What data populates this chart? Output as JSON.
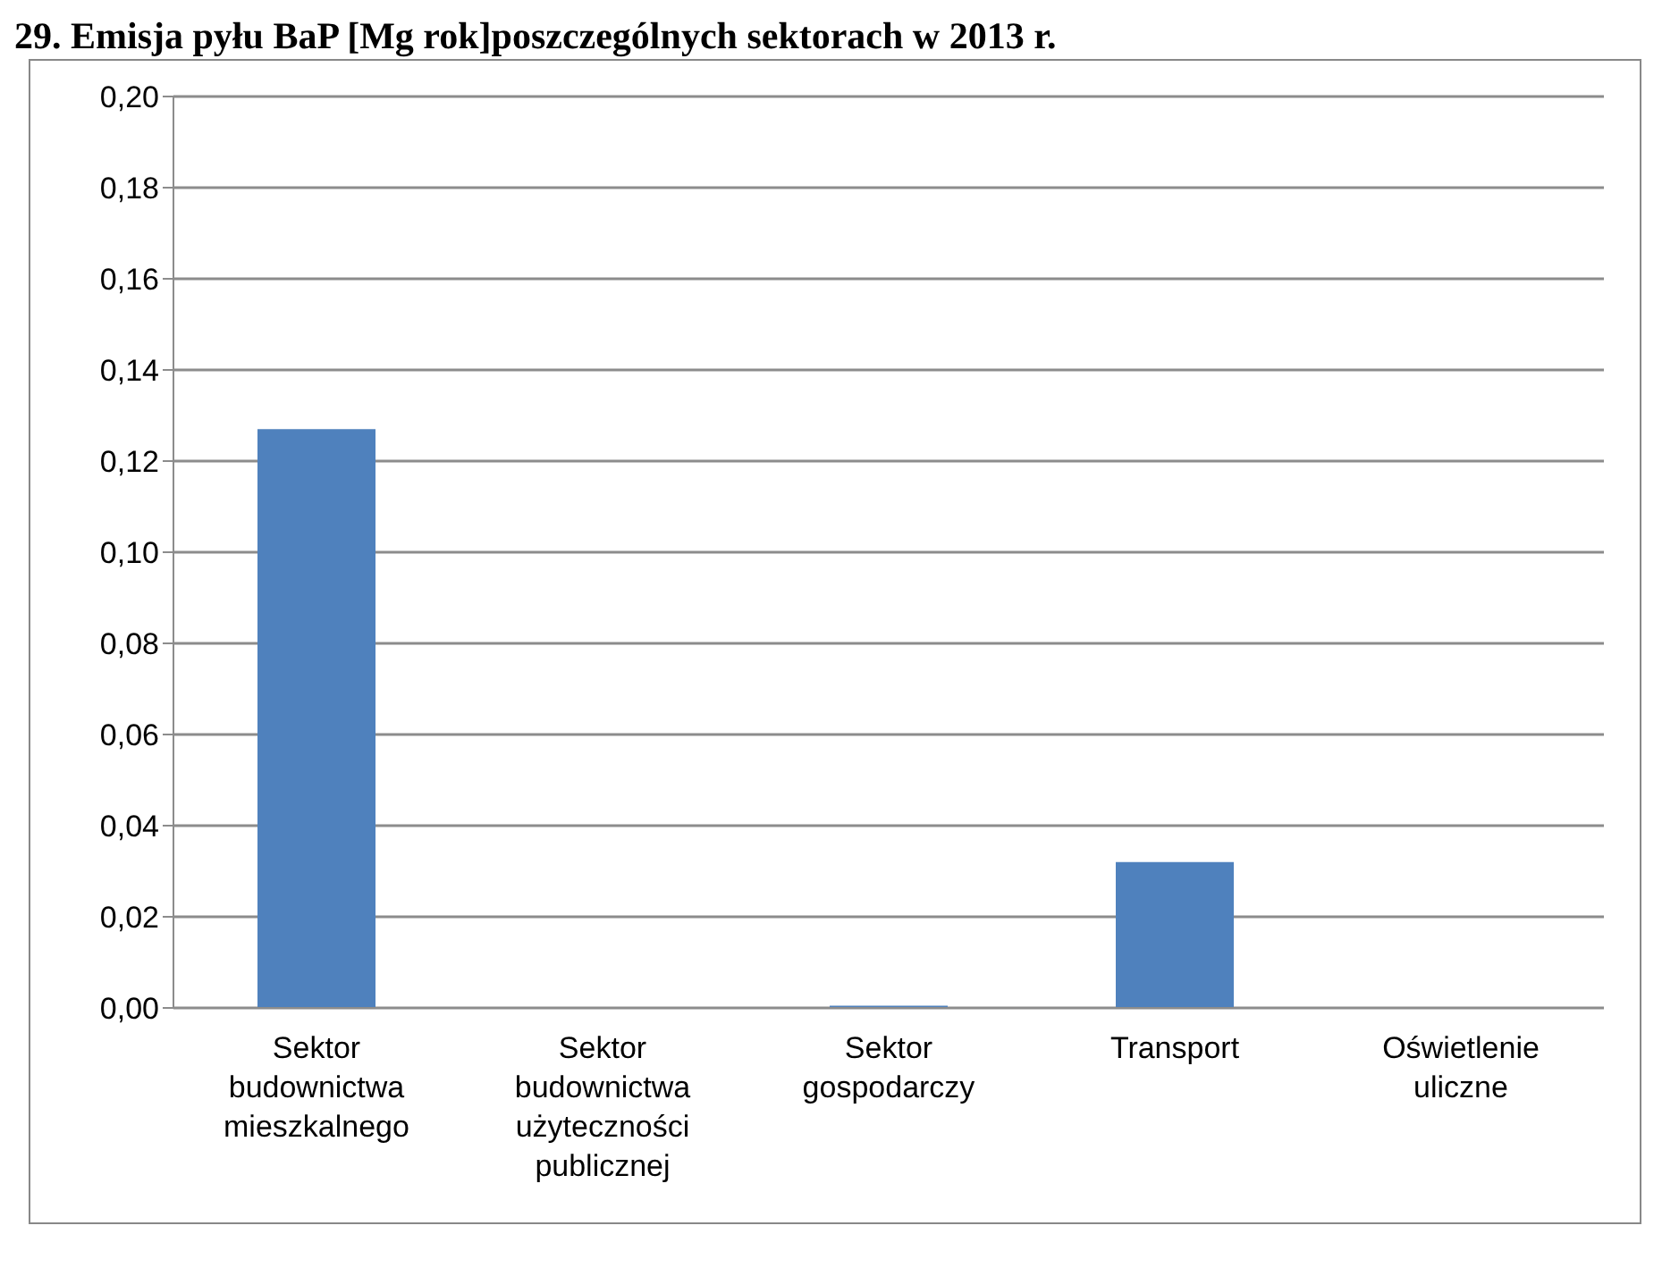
{
  "chart_data": {
    "type": "bar",
    "title": "29. Emisja pyłu BaP [Mg rok]poszczególnych sektorach w 2013 r.",
    "categories": [
      "Sektor budownictwa mieszkalnego",
      "Sektor budownictwa użyteczności publicznej",
      "Sektor gospodarczy",
      "Transport",
      "Oświetlenie uliczne"
    ],
    "values": [
      0.127,
      0,
      0.0005,
      0.032,
      0
    ],
    "color": "#4f81bd",
    "ylim": [
      0,
      0.2
    ],
    "yticks": [
      {
        "value": 0,
        "label": "0,00"
      },
      {
        "value": 0.02,
        "label": "0,02"
      },
      {
        "value": 0.04,
        "label": "0,04"
      },
      {
        "value": 0.06,
        "label": "0,06"
      },
      {
        "value": 0.08,
        "label": "0,08"
      },
      {
        "value": 0.1,
        "label": "0,10"
      },
      {
        "value": 0.12,
        "label": "0,12"
      },
      {
        "value": 0.14,
        "label": "0,14"
      },
      {
        "value": 0.16,
        "label": "0,16"
      },
      {
        "value": 0.18,
        "label": "0,18"
      },
      {
        "value": 0.2,
        "label": "0,20"
      }
    ],
    "grid": "y",
    "legend": false
  }
}
